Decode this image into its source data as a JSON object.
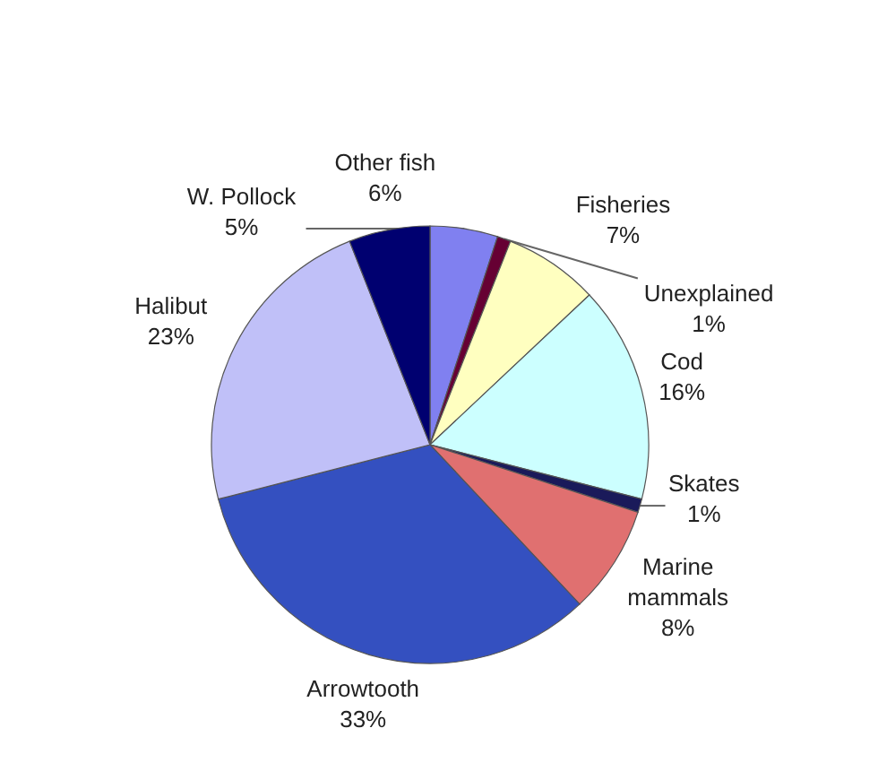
{
  "chart_data": {
    "type": "pie",
    "categories": [
      "W. Pollock",
      "Unexplained",
      "Fisheries",
      "Cod",
      "Skates",
      "Marine mammals",
      "Arrowtooth",
      "Halibut",
      "Other fish"
    ],
    "values": [
      5,
      1,
      7,
      16,
      1,
      8,
      33,
      23,
      6
    ],
    "colors": [
      "#8080f0",
      "#660033",
      "#ffffc0",
      "#ccffff",
      "#1a1a5a",
      "#e07070",
      "#3450c0",
      "#c0c0f8",
      "#000070"
    ],
    "value_labels": [
      "5%",
      "1%",
      "7%",
      "16%",
      "1%",
      "8%",
      "33%",
      "23%",
      "6%"
    ]
  }
}
